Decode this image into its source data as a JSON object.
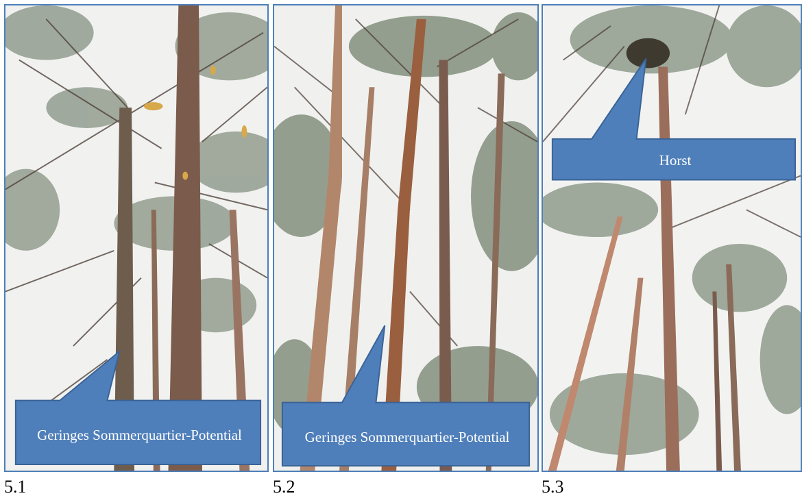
{
  "panels": [
    {
      "caption": "5.1",
      "callout": "Geringes Sommerquartier-Potential"
    },
    {
      "caption": "5.2",
      "callout": "Geringes Sommerquartier-Potential"
    },
    {
      "caption": "5.3",
      "callout": "Horst"
    }
  ],
  "colors": {
    "callout_fill": "#4f7fba",
    "callout_stroke": "#3a6396",
    "panel_border": "#4e7fb8",
    "bark": "#7a5a48",
    "bark_light": "#b8876a",
    "foliage": "#5c6e58"
  }
}
